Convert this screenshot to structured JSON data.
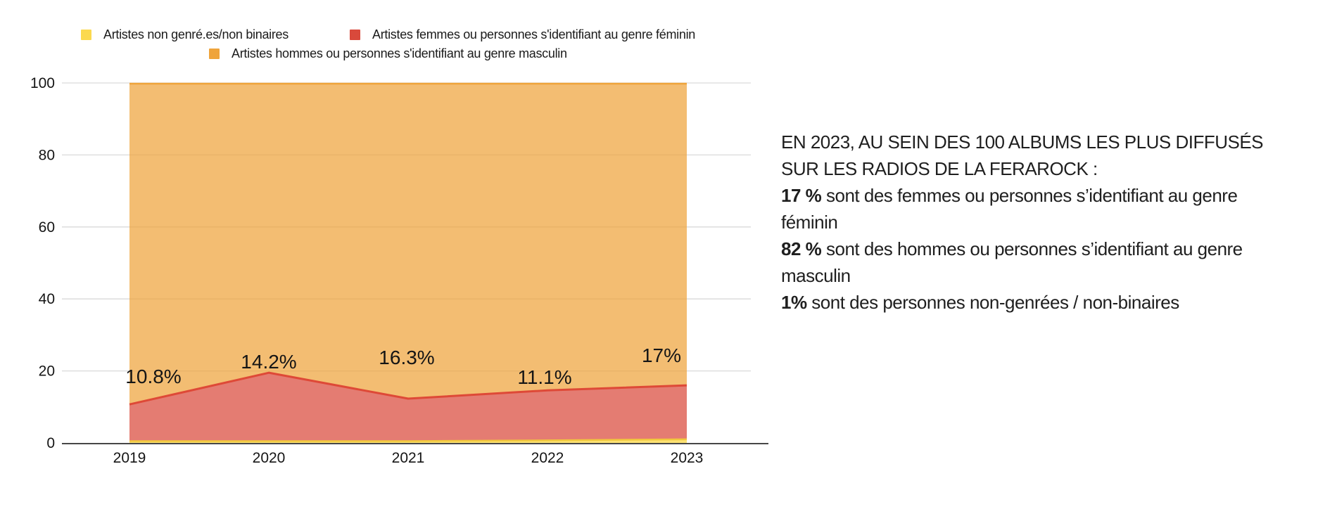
{
  "legend": {
    "items": [
      {
        "label": "Artistes non genré.es/non binaires",
        "color": "#FBD94F"
      },
      {
        "label": "Artistes femmes ou personnes s'identifiant au genre féminin",
        "color": "#D9493B"
      },
      {
        "label": "Artistes hommes ou personnes s'identifiant au genre masculin",
        "color": "#EFA43B"
      }
    ]
  },
  "chart_data": {
    "type": "area",
    "stacked": true,
    "title": "",
    "xlabel": "",
    "ylabel": "",
    "categories": [
      "2019",
      "2020",
      "2021",
      "2022",
      "2023"
    ],
    "series": [
      {
        "name": "Artistes non genré.es/non binaires",
        "color": "#FBD94F",
        "stroke": "#F1C83D",
        "values": [
          0.5,
          0.5,
          0.5,
          0.7,
          1
        ]
      },
      {
        "name": "Artistes femmes ou personnes s'identifiant au genre féminin",
        "color": "#D9493B",
        "stroke": "#DE4937",
        "values": [
          10.8,
          14.2,
          16.3,
          11.1,
          17
        ],
        "data_labels": [
          "10.8%",
          "14.2%",
          "16.3%",
          "11.1%",
          "17%"
        ],
        "plotted_stacked_top": [
          10.7,
          19.5,
          12.3,
          14.6,
          16.0
        ]
      },
      {
        "name": "Artistes hommes ou personnes s'identifiant au genre masculin",
        "color": "#EFA43B",
        "stroke": "#EFA43B",
        "values": [
          88.7,
          85.3,
          83.2,
          88.2,
          82
        ]
      }
    ],
    "ylim": [
      0,
      100
    ],
    "yticks": [
      0,
      20,
      40,
      60,
      80,
      100
    ],
    "grid": true,
    "legend_position": "top"
  },
  "annotation": {
    "lines": [
      {
        "bold": "",
        "text": "EN 2023, AU SEIN DES 100 ALBUMS LES PLUS DIFFUSÉS"
      },
      {
        "bold": "",
        "text": "SUR LES RADIOS DE LA FERAROCK :"
      },
      {
        "bold": "17 %",
        "text": " sont des femmes ou personnes s’identifiant au genre"
      },
      {
        "bold": "",
        "text": "féminin"
      },
      {
        "bold": "82 %",
        "text": " sont des hommes ou personnes s’identifiant au genre"
      },
      {
        "bold": "",
        "text": "masculin"
      },
      {
        "bold": "1%",
        "text": " sont des personnes non-genrées / non-binaires"
      }
    ]
  }
}
